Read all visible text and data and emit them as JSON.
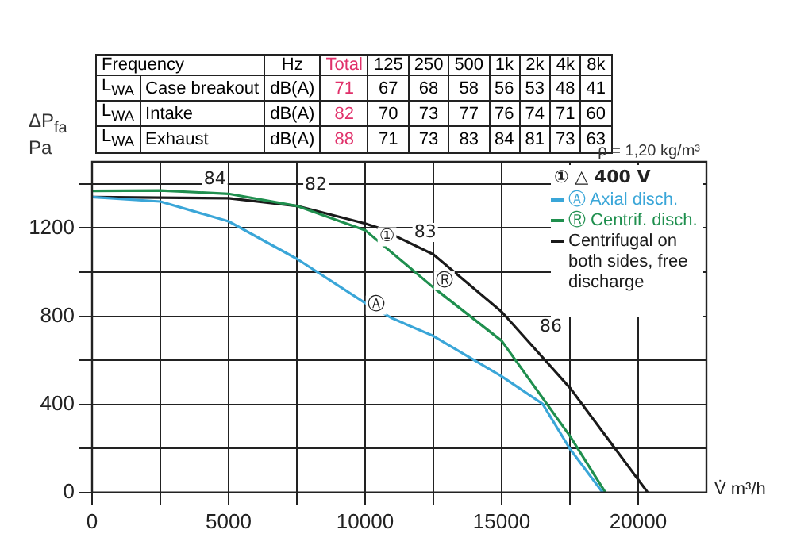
{
  "chart_data": {
    "type": "line",
    "xlabel": "V̇ m³/h",
    "ylabel": "ΔP$_{fa}$ Pa",
    "xlim": [
      0,
      22500
    ],
    "ylim": [
      0,
      1500
    ],
    "xticks": [
      0,
      {
        "value": 2500,
        "label": null
      },
      5000,
      {
        "value": 7500,
        "label": null
      },
      10000,
      {
        "value": 12500,
        "label": null
      },
      15000,
      {
        "value": 17500,
        "label": null
      },
      20000
    ],
    "yticks": [
      0,
      {
        "value": 200,
        "label": null
      },
      400,
      {
        "value": 600,
        "label": null
      },
      800,
      {
        "value": 1000,
        "label": null
      },
      1200,
      {
        "value": 1400,
        "label": null
      }
    ],
    "grid": true,
    "legend": "top right",
    "marker": "none",
    "line_style": "solid",
    "series": [
      {
        "name": "Ⓐ Axial disch.",
        "color": "#3aa6d8",
        "x": [
          0,
          2500,
          5000,
          7500,
          10000,
          11000,
          12500,
          15000,
          16500,
          17500,
          18700
        ],
        "values": [
          1340,
          1320,
          1230,
          1060,
          860,
          790,
          710,
          527,
          402,
          198,
          0
        ]
      },
      {
        "name": "Ⓡ Centrif. disch.",
        "color": "#1f8f4e",
        "x": [
          0,
          2500,
          5000,
          7500,
          10000,
          12500,
          15000,
          17500,
          18800
        ],
        "values": [
          1368,
          1370,
          1355,
          1300,
          1190,
          930,
          688,
          256,
          0
        ]
      },
      {
        "name": "Centrifugal on both sides, free discharge",
        "color": "#1a1a1a",
        "x": [
          0,
          5000,
          7500,
          10000,
          10500,
          12500,
          15000,
          17500,
          20350
        ],
        "values": [
          1340,
          1335,
          1300,
          1220,
          1200,
          1080,
          820,
          475,
          0
        ]
      }
    ],
    "annotations": [
      "① △ 400 V",
      "ρ = 1,20 kg/m³",
      "Frequency",
      "Hz",
      "Total",
      "125",
      "250",
      "500",
      "1k",
      "2k",
      "4k",
      "8k",
      "L$_{WA}$",
      "Case breakout",
      "dB(A)",
      "71",
      "67",
      "68",
      "58",
      "56",
      "53",
      "48",
      "41",
      "L$_{WA}$",
      "Intake",
      "dB(A)",
      "82",
      "70",
      "73",
      "77",
      "76",
      "74",
      "71",
      "60",
      "L$_{WA}$",
      "Exhaust",
      "dB(A)",
      "88",
      "71",
      "73",
      "83",
      "84",
      "81",
      "73",
      "63",
      {
        "text": "84",
        "x": 4500,
        "y": 1420
      },
      {
        "text": "82",
        "x": 8200,
        "y": 1395
      },
      {
        "text": "83",
        "x": 12200,
        "y": 1180
      },
      {
        "text": "86",
        "x": 16800,
        "y": 750
      },
      {
        "text": "①",
        "x": 10800,
        "y": 1160
      },
      {
        "text": "Ⓐ",
        "x": 10400,
        "y": 850
      },
      {
        "text": "Ⓡ",
        "x": 12900,
        "y": 960
      }
    ]
  }
}
